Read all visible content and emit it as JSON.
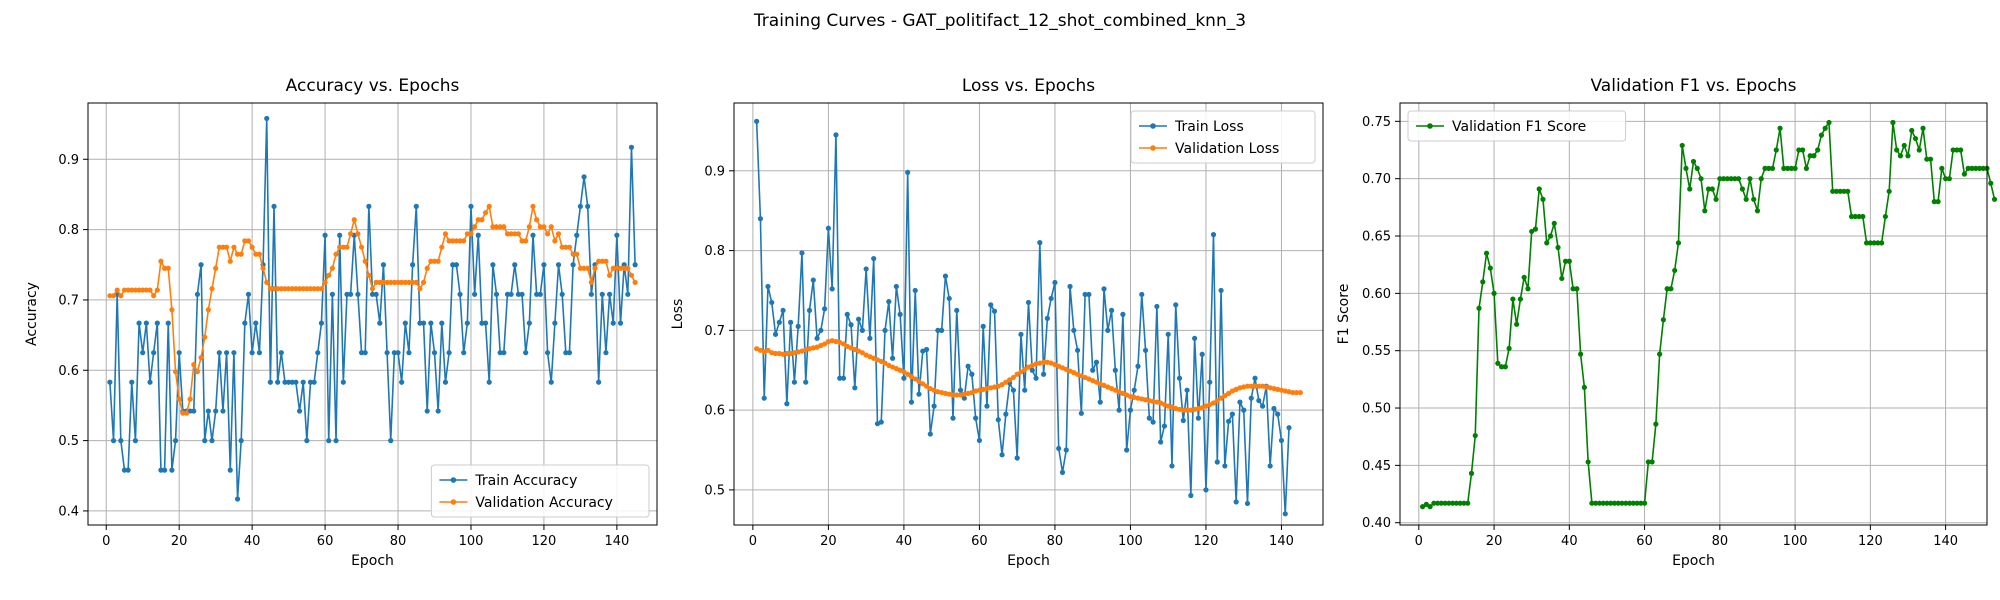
{
  "suptitle": "Training Curves - GAT_politifact_12_shot_combined_knn_3",
  "chart_data": [
    {
      "type": "line",
      "title": "Accuracy vs. Epochs",
      "xlabel": "Epoch",
      "ylabel": "Accuracy",
      "xlim": [
        -5,
        151
      ],
      "ylim": [
        0.38,
        0.98
      ],
      "xticks": [
        0,
        20,
        40,
        60,
        80,
        100,
        120,
        140
      ],
      "yticks": [
        0.4,
        0.5,
        0.6,
        0.7,
        0.8,
        0.9
      ],
      "ytick_labels": [
        "0.4",
        "0.5",
        "0.6",
        "0.7",
        "0.8",
        "0.9"
      ],
      "grid": true,
      "legend_position": "bottom-right",
      "series": [
        {
          "name": "Train Accuracy",
          "color": "#1f77b4",
          "x_start": 1,
          "values": [
            0.583,
            0.5,
            0.708,
            0.5,
            0.458,
            0.458,
            0.583,
            0.5,
            0.667,
            0.625,
            0.667,
            0.583,
            0.625,
            0.667,
            0.458,
            0.458,
            0.667,
            0.458,
            0.5,
            0.625,
            0.542,
            0.542,
            0.542,
            0.542,
            0.708,
            0.75,
            0.5,
            0.542,
            0.5,
            0.542,
            0.625,
            0.542,
            0.625,
            0.458,
            0.625,
            0.417,
            0.5,
            0.667,
            0.708,
            0.625,
            0.667,
            0.625,
            0.75,
            0.958,
            0.583,
            0.833,
            0.583,
            0.625,
            0.583,
            0.583,
            0.583,
            0.583,
            0.542,
            0.583,
            0.5,
            0.583,
            0.583,
            0.625,
            0.667,
            0.792,
            0.5,
            0.708,
            0.5,
            0.792,
            0.583,
            0.708,
            0.708,
            0.792,
            0.708,
            0.625,
            0.625,
            0.833,
            0.708,
            0.708,
            0.667,
            0.75,
            0.625,
            0.5,
            0.625,
            0.625,
            0.583,
            0.667,
            0.625,
            0.75,
            0.833,
            0.667,
            0.667,
            0.542,
            0.667,
            0.625,
            0.542,
            0.667,
            0.583,
            0.625,
            0.75,
            0.75,
            0.708,
            0.625,
            0.667,
            0.833,
            0.708,
            0.792,
            0.667,
            0.667,
            0.583,
            0.75,
            0.708,
            0.625,
            0.625,
            0.708,
            0.708,
            0.75,
            0.708,
            0.708,
            0.625,
            0.667,
            0.792,
            0.708,
            0.708,
            0.75,
            0.625,
            0.583,
            0.667,
            0.75,
            0.708,
            0.625,
            0.625,
            0.75,
            0.792,
            0.833,
            0.875,
            0.833,
            0.708,
            0.75,
            0.583,
            0.708,
            0.625,
            0.708,
            0.667,
            0.792,
            0.667,
            0.75,
            0.708,
            0.917,
            0.75
          ]
        },
        {
          "name": "Validation Accuracy",
          "color": "#ff7f0e",
          "x_start": 1,
          "values": [
            0.706,
            0.706,
            0.714,
            0.706,
            0.714,
            0.714,
            0.714,
            0.714,
            0.714,
            0.714,
            0.714,
            0.714,
            0.706,
            0.714,
            0.755,
            0.745,
            0.745,
            0.686,
            0.598,
            0.559,
            0.539,
            0.539,
            0.559,
            0.608,
            0.598,
            0.618,
            0.647,
            0.686,
            0.716,
            0.745,
            0.775,
            0.775,
            0.775,
            0.755,
            0.775,
            0.765,
            0.765,
            0.784,
            0.784,
            0.775,
            0.765,
            0.765,
            0.745,
            0.725,
            0.716,
            0.716,
            0.716,
            0.716,
            0.716,
            0.716,
            0.716,
            0.716,
            0.716,
            0.716,
            0.716,
            0.716,
            0.716,
            0.716,
            0.716,
            0.725,
            0.735,
            0.745,
            0.765,
            0.775,
            0.775,
            0.775,
            0.794,
            0.814,
            0.794,
            0.775,
            0.755,
            0.735,
            0.716,
            0.725,
            0.725,
            0.725,
            0.725,
            0.725,
            0.725,
            0.725,
            0.725,
            0.725,
            0.725,
            0.725,
            0.725,
            0.716,
            0.725,
            0.745,
            0.755,
            0.755,
            0.755,
            0.775,
            0.794,
            0.784,
            0.784,
            0.784,
            0.784,
            0.784,
            0.794,
            0.794,
            0.804,
            0.814,
            0.814,
            0.824,
            0.833,
            0.804,
            0.804,
            0.804,
            0.804,
            0.794,
            0.794,
            0.794,
            0.794,
            0.784,
            0.784,
            0.804,
            0.833,
            0.814,
            0.804,
            0.804,
            0.794,
            0.804,
            0.784,
            0.794,
            0.775,
            0.775,
            0.775,
            0.765,
            0.765,
            0.745,
            0.745,
            0.745,
            0.725,
            0.745,
            0.755,
            0.755,
            0.755,
            0.735,
            0.745,
            0.745,
            0.745,
            0.745,
            0.745,
            0.735,
            0.725
          ]
        }
      ]
    },
    {
      "type": "line",
      "title": "Loss vs. Epochs",
      "xlabel": "Epoch",
      "ylabel": "Loss",
      "xlim": [
        -5,
        151
      ],
      "ylim": [
        0.456,
        0.985
      ],
      "xticks": [
        0,
        20,
        40,
        60,
        80,
        100,
        120,
        140
      ],
      "yticks": [
        0.5,
        0.6,
        0.7,
        0.8,
        0.9
      ],
      "ytick_labels": [
        "0.5",
        "0.6",
        "0.7",
        "0.8",
        "0.9"
      ],
      "grid": true,
      "legend_position": "top-right",
      "series": [
        {
          "name": "Train Loss",
          "color": "#1f77b4",
          "x_start": 1,
          "values": [
            0.962,
            0.84,
            0.615,
            0.755,
            0.735,
            0.695,
            0.71,
            0.725,
            0.608,
            0.71,
            0.635,
            0.705,
            0.797,
            0.635,
            0.725,
            0.763,
            0.69,
            0.7,
            0.727,
            0.828,
            0.752,
            0.945,
            0.64,
            0.64,
            0.72,
            0.707,
            0.628,
            0.714,
            0.7,
            0.777,
            0.69,
            0.79,
            0.583,
            0.585,
            0.7,
            0.736,
            0.665,
            0.755,
            0.72,
            0.64,
            0.898,
            0.61,
            0.75,
            0.62,
            0.674,
            0.676,
            0.57,
            0.605,
            0.7,
            0.7,
            0.768,
            0.74,
            0.59,
            0.725,
            0.625,
            0.615,
            0.655,
            0.645,
            0.59,
            0.562,
            0.705,
            0.605,
            0.732,
            0.724,
            0.588,
            0.544,
            0.595,
            0.634,
            0.625,
            0.54,
            0.695,
            0.625,
            0.735,
            0.65,
            0.64,
            0.81,
            0.645,
            0.715,
            0.74,
            0.76,
            0.552,
            0.522,
            0.55,
            0.755,
            0.7,
            0.675,
            0.596,
            0.745,
            0.745,
            0.65,
            0.66,
            0.61,
            0.752,
            0.7,
            0.725,
            0.65,
            0.6,
            0.72,
            0.55,
            0.6,
            0.625,
            0.655,
            0.745,
            0.675,
            0.59,
            0.585,
            0.73,
            0.56,
            0.58,
            0.695,
            0.53,
            0.732,
            0.64,
            0.587,
            0.625,
            0.493,
            0.69,
            0.59,
            0.67,
            0.5,
            0.635,
            0.82,
            0.535,
            0.75,
            0.53,
            0.586,
            0.595,
            0.485,
            0.61,
            0.6,
            0.483,
            0.615,
            0.64,
            0.612,
            0.605,
            0.63,
            0.53,
            0.602,
            0.595,
            0.562,
            0.47,
            0.578
          ]
        },
        {
          "name": "Validation Loss",
          "color": "#ff7f0e",
          "x_start": 1,
          "values": [
            0.677,
            0.675,
            0.673,
            0.675,
            0.672,
            0.671,
            0.671,
            0.67,
            0.671,
            0.671,
            0.672,
            0.673,
            0.674,
            0.676,
            0.677,
            0.678,
            0.679,
            0.681,
            0.683,
            0.686,
            0.687,
            0.686,
            0.685,
            0.683,
            0.68,
            0.678,
            0.676,
            0.674,
            0.672,
            0.669,
            0.667,
            0.665,
            0.663,
            0.661,
            0.659,
            0.656,
            0.654,
            0.652,
            0.65,
            0.648,
            0.645,
            0.642,
            0.639,
            0.636,
            0.633,
            0.63,
            0.627,
            0.625,
            0.623,
            0.622,
            0.621,
            0.62,
            0.619,
            0.619,
            0.619,
            0.62,
            0.621,
            0.622,
            0.624,
            0.625,
            0.626,
            0.627,
            0.628,
            0.629,
            0.63,
            0.632,
            0.635,
            0.638,
            0.641,
            0.645,
            0.648,
            0.651,
            0.654,
            0.656,
            0.658,
            0.659,
            0.66,
            0.66,
            0.659,
            0.657,
            0.655,
            0.653,
            0.651,
            0.649,
            0.647,
            0.645,
            0.643,
            0.641,
            0.639,
            0.637,
            0.635,
            0.633,
            0.631,
            0.629,
            0.627,
            0.625,
            0.623,
            0.621,
            0.619,
            0.617,
            0.616,
            0.615,
            0.614,
            0.613,
            0.612,
            0.611,
            0.61,
            0.609,
            0.607,
            0.605,
            0.604,
            0.602,
            0.601,
            0.6,
            0.6,
            0.6,
            0.601,
            0.602,
            0.603,
            0.605,
            0.607,
            0.609,
            0.612,
            0.615,
            0.618,
            0.621,
            0.624,
            0.626,
            0.628,
            0.629,
            0.63,
            0.63,
            0.63,
            0.63,
            0.63,
            0.629,
            0.628,
            0.627,
            0.626,
            0.625,
            0.624,
            0.623,
            0.622,
            0.622,
            0.622
          ]
        }
      ]
    },
    {
      "type": "line",
      "title": "Validation F1 vs. Epochs",
      "xlabel": "Epoch",
      "ylabel": "F1 Score",
      "xlim": [
        -5,
        151
      ],
      "ylim": [
        0.398,
        0.766
      ],
      "xticks": [
        0,
        20,
        40,
        60,
        80,
        100,
        120,
        140
      ],
      "yticks": [
        0.4,
        0.45,
        0.5,
        0.55,
        0.6,
        0.65,
        0.7,
        0.75
      ],
      "ytick_labels": [
        "0.40",
        "0.45",
        "0.50",
        "0.55",
        "0.60",
        "0.65",
        "0.70",
        "0.75"
      ],
      "grid": true,
      "legend_position": "top-left",
      "series": [
        {
          "name": "Validation F1 Score",
          "color": "#008000",
          "x_start": 1,
          "values": [
            0.414,
            0.416,
            0.414,
            0.417,
            0.417,
            0.417,
            0.417,
            0.417,
            0.417,
            0.417,
            0.417,
            0.417,
            0.417,
            0.443,
            0.476,
            0.587,
            0.61,
            0.635,
            0.622,
            0.6,
            0.539,
            0.536,
            0.536,
            0.552,
            0.595,
            0.573,
            0.595,
            0.614,
            0.604,
            0.654,
            0.656,
            0.691,
            0.682,
            0.644,
            0.65,
            0.661,
            0.64,
            0.613,
            0.628,
            0.628,
            0.604,
            0.604,
            0.547,
            0.518,
            0.453,
            0.417,
            0.417,
            0.417,
            0.417,
            0.417,
            0.417,
            0.417,
            0.417,
            0.417,
            0.417,
            0.417,
            0.417,
            0.417,
            0.417,
            0.417,
            0.453,
            0.453,
            0.486,
            0.547,
            0.577,
            0.604,
            0.604,
            0.62,
            0.644,
            0.729,
            0.709,
            0.691,
            0.715,
            0.709,
            0.7,
            0.672,
            0.691,
            0.691,
            0.682,
            0.7,
            0.7,
            0.7,
            0.7,
            0.7,
            0.7,
            0.691,
            0.682,
            0.7,
            0.682,
            0.672,
            0.7,
            0.709,
            0.709,
            0.709,
            0.725,
            0.744,
            0.709,
            0.709,
            0.709,
            0.709,
            0.725,
            0.725,
            0.709,
            0.72,
            0.72,
            0.725,
            0.738,
            0.744,
            0.749,
            0.689,
            0.689,
            0.689,
            0.689,
            0.689,
            0.667,
            0.667,
            0.667,
            0.667,
            0.644,
            0.644,
            0.644,
            0.644,
            0.644,
            0.667,
            0.689,
            0.749,
            0.725,
            0.72,
            0.729,
            0.72,
            0.742,
            0.735,
            0.725,
            0.744,
            0.717,
            0.717,
            0.68,
            0.68,
            0.709,
            0.7,
            0.7,
            0.725,
            0.725,
            0.725,
            0.704,
            0.709,
            0.709,
            0.709,
            0.709,
            0.709,
            0.709,
            0.696,
            0.682
          ]
        }
      ]
    }
  ]
}
